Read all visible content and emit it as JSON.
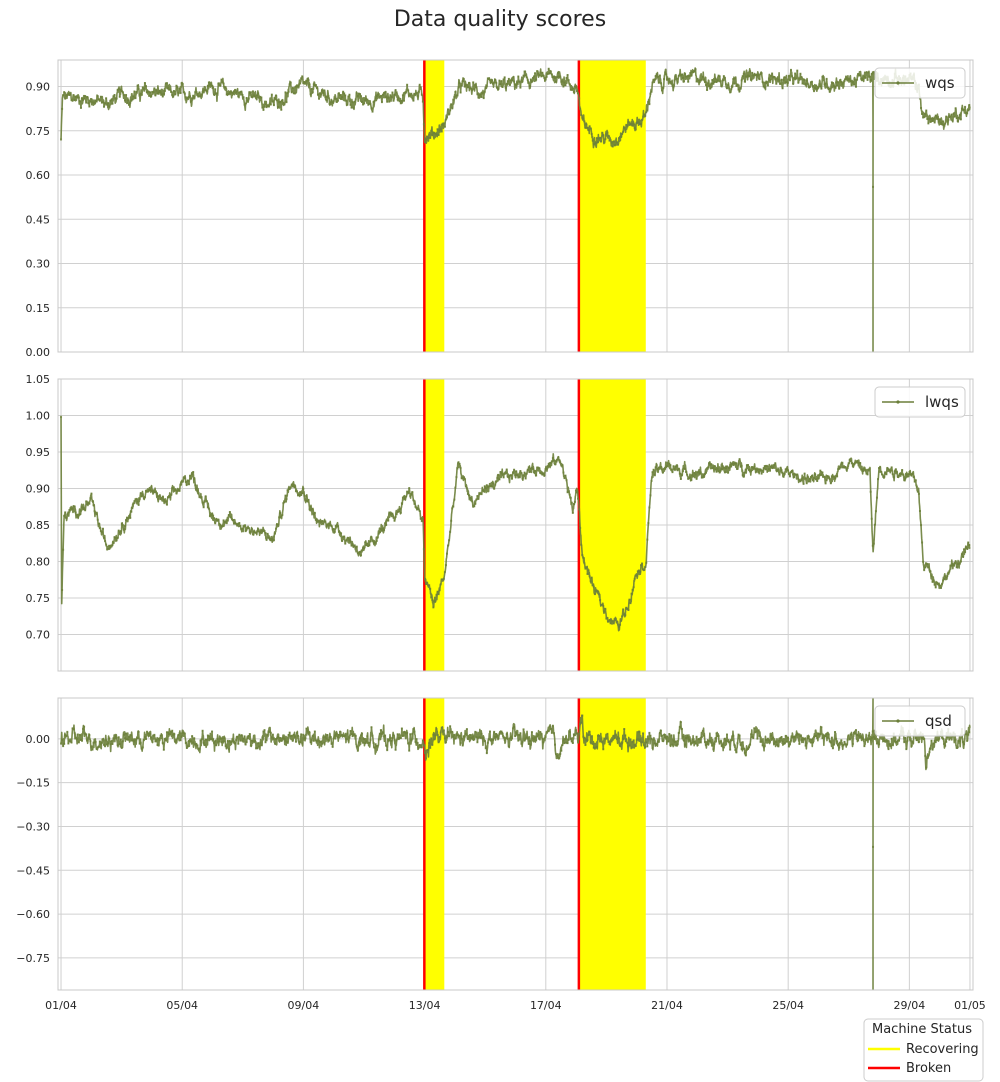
{
  "chart_data": {
    "type": "line",
    "title": "Data quality scores",
    "x_axis": {
      "range": [
        "2024-04-01",
        "2024-05-01"
      ],
      "tick_labels": [
        "01/04",
        "05/04",
        "09/04",
        "13/04",
        "17/04",
        "21/04",
        "25/04",
        "29/04",
        "01/05"
      ],
      "tick_days": [
        0,
        4,
        8,
        12,
        16,
        20,
        24,
        28,
        30
      ]
    },
    "colors": {
      "series": "#6b7f3a",
      "recovering": "#ffff00",
      "broken": "#ff0000",
      "grid": "#d0d0d0",
      "frame": "#c8c8c8"
    },
    "status_periods": {
      "broken": [
        {
          "start_day": 11.95,
          "end_day": 12.02
        },
        {
          "start_day": 17.05,
          "end_day": 17.12
        }
      ],
      "recovering": [
        {
          "start_day": 12.02,
          "end_day": 12.65
        },
        {
          "start_day": 17.12,
          "end_day": 19.3
        }
      ]
    },
    "status_legend": {
      "title": "Machine Status",
      "items": [
        {
          "label": "Recovering",
          "color": "#ffff00"
        },
        {
          "label": "Broken",
          "color": "#ff0000"
        }
      ]
    },
    "panels": [
      {
        "series_name": "wqs",
        "ylim": [
          0.0,
          0.99
        ],
        "yticks": [
          0.0,
          0.15,
          0.3,
          0.45,
          0.6,
          0.75,
          0.9
        ],
        "ytick_labels": [
          "0.00",
          "0.15",
          "0.30",
          "0.45",
          "0.60",
          "0.75",
          "0.90"
        ],
        "legend_position": "top-right",
        "noise": 0.018,
        "profile": [
          [
            0,
            0.72
          ],
          [
            0.05,
            0.86
          ],
          [
            1,
            0.86
          ],
          [
            1.5,
            0.84
          ],
          [
            2,
            0.87
          ],
          [
            3,
            0.88
          ],
          [
            4,
            0.87
          ],
          [
            5,
            0.9
          ],
          [
            6,
            0.87
          ],
          [
            7,
            0.84
          ],
          [
            7.8,
            0.9
          ],
          [
            8.5,
            0.88
          ],
          [
            9,
            0.86
          ],
          [
            10,
            0.85
          ],
          [
            10.5,
            0.86
          ],
          [
            11,
            0.87
          ],
          [
            11.5,
            0.88
          ],
          [
            11.95,
            0.87
          ],
          [
            12.0,
            0.74
          ],
          [
            12.3,
            0.74
          ],
          [
            12.65,
            0.77
          ],
          [
            12.9,
            0.84
          ],
          [
            13.2,
            0.9
          ],
          [
            14,
            0.88
          ],
          [
            15,
            0.91
          ],
          [
            16,
            0.93
          ],
          [
            16.5,
            0.94
          ],
          [
            16.9,
            0.9
          ],
          [
            17.05,
            0.89
          ],
          [
            17.2,
            0.77
          ],
          [
            17.8,
            0.73
          ],
          [
            18.2,
            0.72
          ],
          [
            18.7,
            0.77
          ],
          [
            19.0,
            0.78
          ],
          [
            19.3,
            0.8
          ],
          [
            19.5,
            0.91
          ],
          [
            20,
            0.92
          ],
          [
            21,
            0.93
          ],
          [
            22,
            0.92
          ],
          [
            23,
            0.93
          ],
          [
            24,
            0.92
          ],
          [
            25,
            0.91
          ],
          [
            26,
            0.92
          ],
          [
            27,
            0.93
          ],
          [
            27.4,
            0.93
          ],
          [
            28.0,
            0.92
          ],
          [
            28.3,
            0.9
          ],
          [
            28.45,
            0.8
          ],
          [
            29,
            0.78
          ],
          [
            30,
            0.83
          ]
        ],
        "dropouts": [
          {
            "day": 26.8,
            "values": [
              0.76,
              0.0,
              0.56
            ]
          }
        ]
      },
      {
        "series_name": "lwqs",
        "ylim": [
          0.65,
          1.05
        ],
        "yticks": [
          0.7,
          0.75,
          0.8,
          0.85,
          0.9,
          0.95,
          1.0,
          1.05
        ],
        "ytick_labels": [
          "0.70",
          "0.75",
          "0.80",
          "0.85",
          "0.90",
          "0.95",
          "1.00",
          "1.05"
        ],
        "legend_position": "top-right",
        "noise": 0.006,
        "profile": [
          [
            0,
            1.0
          ],
          [
            0.02,
            0.74
          ],
          [
            0.1,
            0.86
          ],
          [
            0.5,
            0.87
          ],
          [
            1,
            0.88
          ],
          [
            1.5,
            0.82
          ],
          [
            2,
            0.85
          ],
          [
            2.8,
            0.9
          ],
          [
            3.5,
            0.88
          ],
          [
            4.3,
            0.92
          ],
          [
            5,
            0.86
          ],
          [
            6,
            0.85
          ],
          [
            6.5,
            0.84
          ],
          [
            7,
            0.83
          ],
          [
            7.6,
            0.91
          ],
          [
            8,
            0.9
          ],
          [
            8.5,
            0.85
          ],
          [
            9,
            0.85
          ],
          [
            9.5,
            0.83
          ],
          [
            10,
            0.81
          ],
          [
            10.5,
            0.84
          ],
          [
            11,
            0.86
          ],
          [
            11.5,
            0.9
          ],
          [
            11.8,
            0.87
          ],
          [
            11.95,
            0.85
          ],
          [
            12.0,
            0.78
          ],
          [
            12.3,
            0.74
          ],
          [
            12.65,
            0.78
          ],
          [
            12.9,
            0.86
          ],
          [
            13.1,
            0.93
          ],
          [
            13.6,
            0.88
          ],
          [
            14,
            0.9
          ],
          [
            14.5,
            0.91
          ],
          [
            15,
            0.92
          ],
          [
            16,
            0.93
          ],
          [
            16.5,
            0.94
          ],
          [
            16.9,
            0.87
          ],
          [
            17.05,
            0.9
          ],
          [
            17.2,
            0.81
          ],
          [
            17.6,
            0.76
          ],
          [
            18,
            0.73
          ],
          [
            18.4,
            0.71
          ],
          [
            18.7,
            0.74
          ],
          [
            19.0,
            0.79
          ],
          [
            19.3,
            0.8
          ],
          [
            19.5,
            0.92
          ],
          [
            20,
            0.93
          ],
          [
            21,
            0.92
          ],
          [
            22,
            0.93
          ],
          [
            23,
            0.93
          ],
          [
            24,
            0.92
          ],
          [
            25,
            0.91
          ],
          [
            25.5,
            0.92
          ],
          [
            26,
            0.94
          ],
          [
            26.7,
            0.92
          ],
          [
            26.8,
            0.81
          ],
          [
            27,
            0.93
          ],
          [
            28,
            0.92
          ],
          [
            28.3,
            0.9
          ],
          [
            28.45,
            0.8
          ],
          [
            29,
            0.77
          ],
          [
            30,
            0.82
          ]
        ],
        "dropouts": []
      },
      {
        "series_name": "qsd",
        "ylim": [
          -0.86,
          0.14
        ],
        "yticks": [
          -0.75,
          -0.6,
          -0.45,
          -0.3,
          -0.15,
          0.0
        ],
        "ytick_labels": [
          "−0.75",
          "−0.60",
          "−0.45",
          "−0.30",
          "−0.15",
          "0.00"
        ],
        "legend_position": "top-right",
        "noise": 0.022,
        "profile": [
          [
            0,
            0.0
          ],
          [
            0.05,
            0.0
          ],
          [
            12.0,
            0.0
          ],
          [
            12.05,
            -0.06
          ],
          [
            12.2,
            0.0
          ],
          [
            16.3,
            0.0
          ],
          [
            16.35,
            -0.08
          ],
          [
            16.5,
            0.0
          ],
          [
            17.1,
            0.0
          ],
          [
            17.15,
            0.08
          ],
          [
            17.3,
            0.0
          ],
          [
            28.5,
            0.0
          ],
          [
            28.55,
            -0.08
          ],
          [
            28.7,
            0.0
          ],
          [
            30,
            0.0
          ]
        ],
        "dropouts": [
          {
            "day": 26.8,
            "values": [
              0.14,
              -0.86,
              -0.37
            ]
          }
        ]
      }
    ]
  }
}
